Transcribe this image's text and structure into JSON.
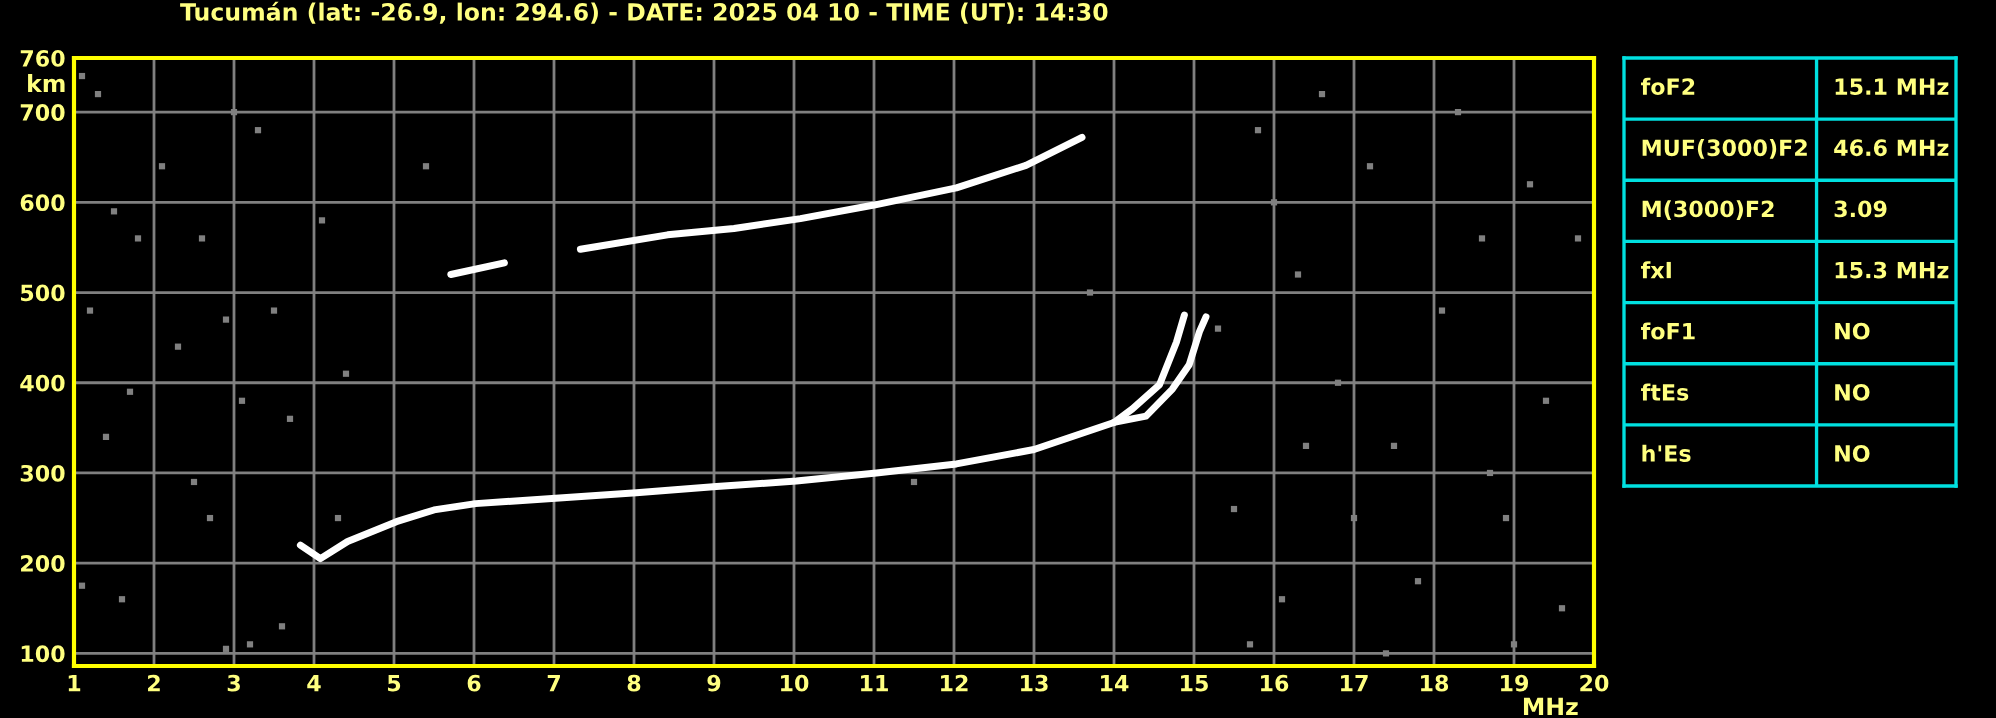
{
  "chart_data": [
    {
      "type": "line",
      "title": "Tucumán (lat: -26.9, lon: 294.6) - DATE: 2025 04 10 - TIME (UT): 14:30",
      "xlabel": "MHz",
      "ylabel": "km",
      "xlim": [
        1,
        20
      ],
      "ylim": [
        86,
        760
      ],
      "xticks": [
        1,
        2,
        3,
        4,
        5,
        6,
        7,
        8,
        9,
        10,
        11,
        12,
        13,
        14,
        15,
        16,
        17,
        18,
        19,
        20
      ],
      "yticks": [
        100,
        200,
        300,
        400,
        500,
        600,
        700,
        760
      ],
      "grid": true,
      "legend": false,
      "marker": "none",
      "line_style": "solid",
      "series": [
        {
          "color": "#ffffff",
          "x": [
            3.83,
            4.08,
            4.42,
            5.03,
            5.5,
            6.02,
            7.02,
            8.03,
            9.03,
            10.03,
            11.03,
            12.03,
            13.0,
            14.0,
            14.23,
            14.57,
            14.78,
            14.88
          ],
          "values": [
            220,
            205,
            224,
            246,
            259,
            266,
            272,
            278,
            285,
            291,
            300,
            310,
            326,
            356,
            371,
            398,
            445,
            475
          ]
        },
        {
          "color": "#ffffff",
          "x": [
            14.0,
            14.4,
            14.73,
            14.94,
            15.07,
            15.15
          ],
          "values": [
            356,
            363,
            393,
            420,
            457,
            473
          ]
        },
        {
          "color": "#ffffff",
          "x": [
            5.71,
            6.38,
            6.8,
            7.33,
            8.42,
            9.25,
            10.08,
            11.0,
            12.03,
            12.9,
            13.6
          ],
          "values": [
            520,
            533,
            null,
            548,
            564,
            571,
            582,
            597,
            616,
            641,
            672
          ]
        },
        {
          "type": "scatter",
          "marker": "square",
          "color": "#808080",
          "x": [
            1.1,
            1.3,
            1.5,
            1.8,
            1.2,
            1.7,
            1.4,
            2.1,
            2.3,
            2.6,
            2.9,
            2.7,
            3.0,
            3.3,
            3.1,
            3.5,
            3.7,
            3.6,
            3.2,
            2.9,
            1.6,
            1.1,
            2.5,
            4.1,
            4.3,
            4.4,
            5.4,
            11.5,
            13.7,
            15.3,
            15.5,
            15.8,
            16.0,
            16.3,
            16.6,
            16.8,
            17.2,
            17.5,
            17.8,
            18.1,
            18.3,
            18.6,
            18.9,
            19.2,
            19.4,
            19.6,
            19.8,
            16.1,
            15.7,
            17.4,
            19.0,
            18.7,
            16.4,
            17.0
          ],
          "values": [
            740,
            720,
            590,
            560,
            480,
            390,
            340,
            640,
            440,
            560,
            470,
            250,
            700,
            680,
            380,
            480,
            360,
            130,
            110,
            105,
            160,
            175,
            290,
            580,
            250,
            410,
            640,
            290,
            500,
            460,
            260,
            680,
            600,
            520,
            720,
            400,
            640,
            330,
            180,
            480,
            700,
            560,
            250,
            620,
            380,
            150,
            560,
            160,
            110,
            100,
            110,
            300,
            330,
            250
          ]
        }
      ]
    },
    {
      "type": "other",
      "annotations": [
        "foF2",
        "15.1 MHz",
        "MUF(3000)F2",
        "46.6 MHz",
        "M(3000)F2",
        "3.09",
        "fxI",
        "15.3 MHz",
        "foF1",
        "NO",
        "ftEs",
        "NO",
        "h'Es",
        "NO"
      ]
    }
  ]
}
